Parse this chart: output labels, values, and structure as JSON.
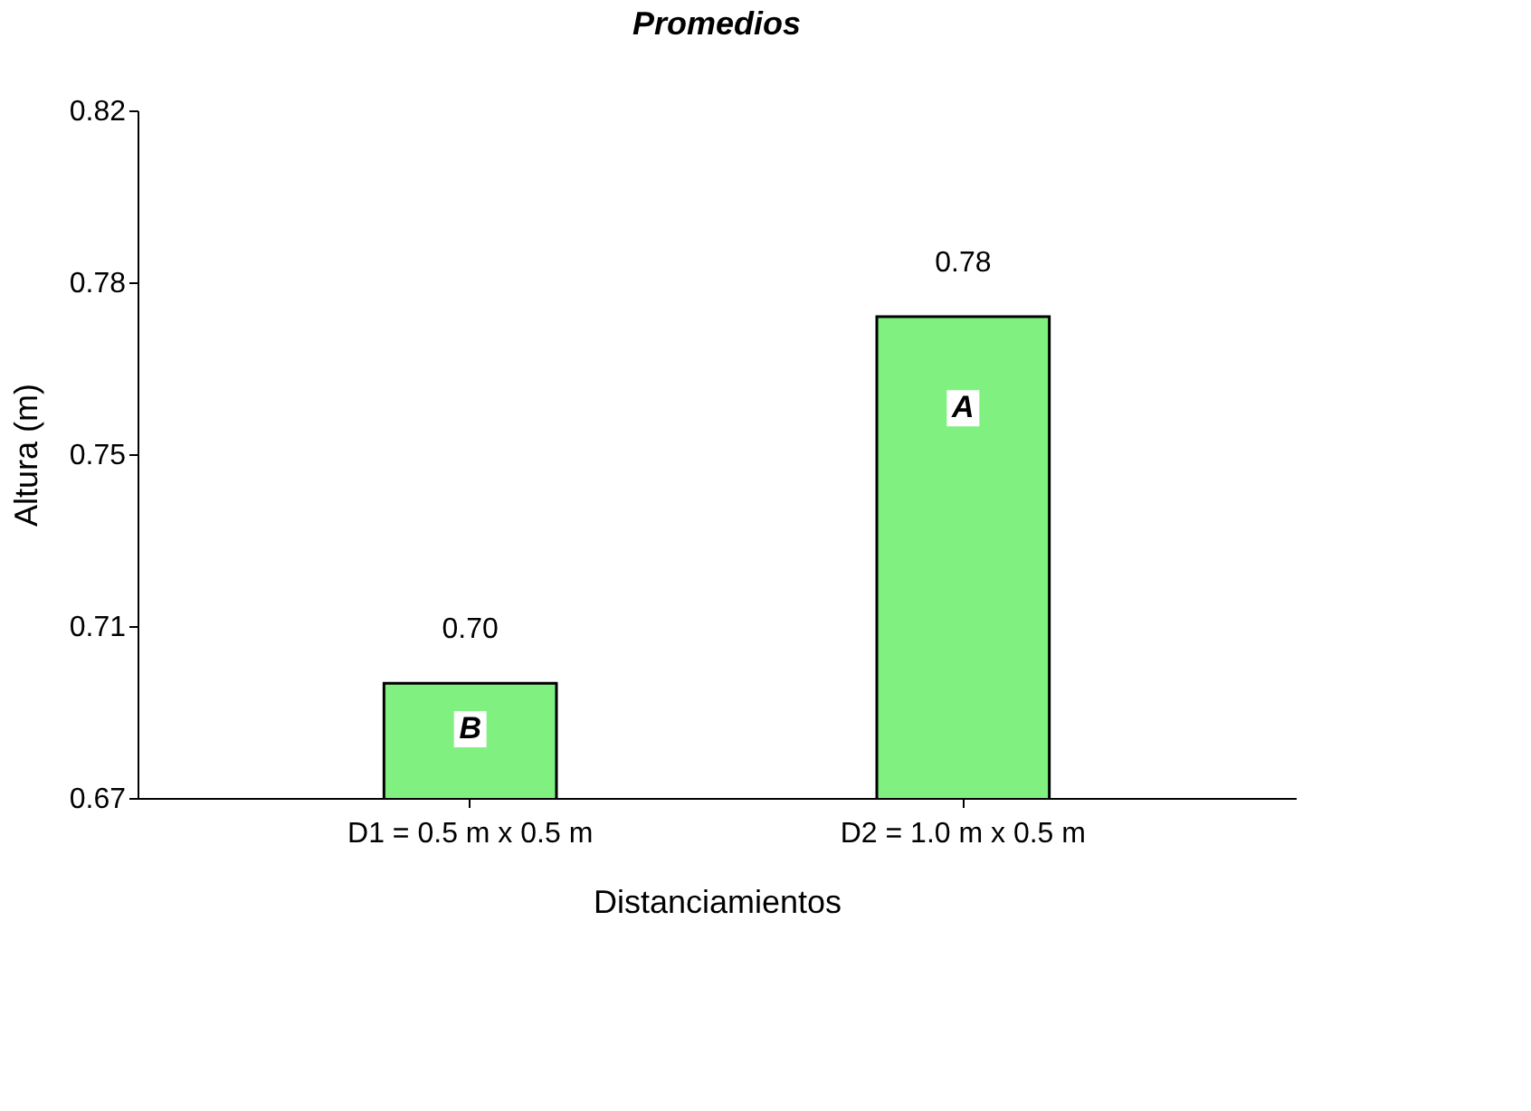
{
  "chart_data": {
    "type": "bar",
    "title": "Promedios",
    "xlabel": "Distanciamientos",
    "ylabel": "Altura (m)",
    "categories": [
      "D1 = 0.5 m x 0.5 m",
      "D2 = 1.0 m x 0.5 m"
    ],
    "values": [
      0.695,
      0.775
    ],
    "value_labels": [
      "0.70",
      "0.78"
    ],
    "color": "#80f080",
    "ylim": [
      0.67,
      0.82
    ],
    "yticks": [
      {
        "value": 0.67,
        "label": "0.67"
      },
      {
        "value": 0.7075,
        "label": "0.71"
      },
      {
        "value": 0.745,
        "label": "0.75"
      },
      {
        "value": 0.7825,
        "label": "0.78"
      },
      {
        "value": 0.82,
        "label": "0.82"
      }
    ],
    "annotations": [
      {
        "text": "B",
        "x": "D1 = 0.5 m x 0.5 m",
        "y": 0.685
      },
      {
        "text": "A",
        "x": "D2 = 1.0 m x 0.5 m",
        "y": 0.755
      }
    ],
    "grid": false
  }
}
